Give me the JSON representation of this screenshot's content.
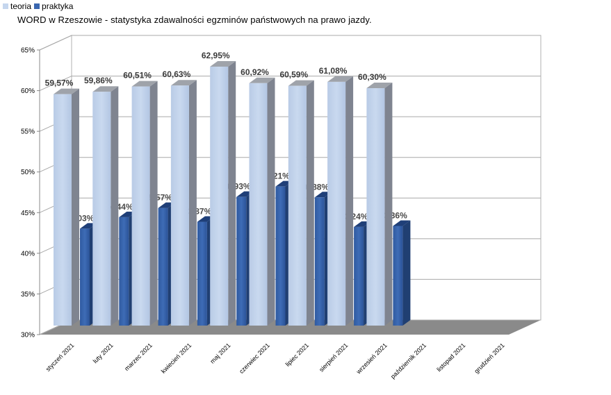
{
  "chart_data": {
    "type": "bar",
    "title": "WORD w Rzeszowie - statystyka zdawalności egzminów państwowych na prawo jazdy.",
    "categories": [
      "styczeń 2021",
      "luty 2021",
      "marzec 2021",
      "kwiecień 2021",
      "maj 2021",
      "czerwiec 2021",
      "lipiec 2021",
      "sierpień 2021",
      "wrzesień 2021",
      "październik 2021",
      "listopad 2021",
      "grudzień 2021"
    ],
    "series": [
      {
        "name": "teoria",
        "color": "#c5d6ee",
        "values": [
          59.57,
          59.86,
          60.51,
          60.63,
          62.95,
          60.92,
          60.59,
          61.08,
          60.3,
          null,
          null,
          null
        ],
        "labels": [
          "59,57%",
          "59,86%",
          "60,51%",
          "60,63%",
          "62,95%",
          "60,92%",
          "60,59%",
          "61,08%",
          "60,30%",
          "",
          "",
          ""
        ]
      },
      {
        "name": "praktyka",
        "color": "#3a67b0",
        "values": [
          43.03,
          44.44,
          45.57,
          43.87,
          46.93,
          48.21,
          46.88,
          43.24,
          43.36,
          null,
          null,
          null
        ],
        "labels": [
          "43,03%",
          "44,44%",
          "45,57%",
          "43,87%",
          "46,93%",
          "48,21%",
          "46,88%",
          "43,24%",
          "43,36%",
          "",
          "",
          ""
        ]
      }
    ],
    "yticks": [
      "30%",
      "35%",
      "40%",
      "45%",
      "50%",
      "55%",
      "60%",
      "65%"
    ],
    "ylim": [
      30,
      65
    ],
    "grid": true,
    "legend_position": "top-left"
  }
}
